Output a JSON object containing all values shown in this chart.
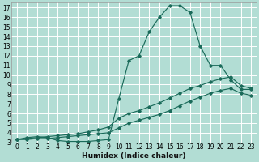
{
  "xlabel": "Humidex (Indice chaleur)",
  "background_color": "#b2ddd4",
  "grid_color": "#ffffff",
  "line_color": "#1a6b5a",
  "xlim": [
    -0.5,
    23.5
  ],
  "ylim": [
    3,
    17.5
  ],
  "xticks": [
    0,
    1,
    2,
    3,
    4,
    5,
    6,
    7,
    8,
    9,
    10,
    11,
    12,
    13,
    14,
    15,
    16,
    17,
    18,
    19,
    20,
    21,
    22,
    23
  ],
  "yticks": [
    3,
    4,
    5,
    6,
    7,
    8,
    9,
    10,
    11,
    12,
    13,
    14,
    15,
    16,
    17
  ],
  "line1_x": [
    0,
    1,
    2,
    3,
    4,
    5,
    6,
    7,
    8,
    9,
    10,
    11,
    12,
    13,
    14,
    15,
    16,
    17,
    18,
    19,
    20,
    21,
    22,
    23
  ],
  "line1_y": [
    3.3,
    3.5,
    3.6,
    3.5,
    3.2,
    3.1,
    3.1,
    3.1,
    3.2,
    3.3,
    7.5,
    11.5,
    12.0,
    14.5,
    16.0,
    17.2,
    17.2,
    16.5,
    13.0,
    11.0,
    11.0,
    9.5,
    8.5,
    8.5
  ],
  "line2_x": [
    0,
    1,
    2,
    3,
    4,
    5,
    6,
    7,
    8,
    9,
    10,
    11,
    12,
    13,
    14,
    15,
    16,
    17,
    18,
    19,
    20,
    21,
    22,
    23
  ],
  "line2_y": [
    3.3,
    3.4,
    3.5,
    3.6,
    3.7,
    3.8,
    3.9,
    4.1,
    4.3,
    4.6,
    5.5,
    6.0,
    6.3,
    6.7,
    7.1,
    7.6,
    8.1,
    8.6,
    8.9,
    9.3,
    9.6,
    9.8,
    8.9,
    8.6
  ],
  "line3_x": [
    0,
    1,
    2,
    3,
    4,
    5,
    6,
    7,
    8,
    9,
    10,
    11,
    12,
    13,
    14,
    15,
    16,
    17,
    18,
    19,
    20,
    21,
    22,
    23
  ],
  "line3_y": [
    3.3,
    3.3,
    3.4,
    3.4,
    3.5,
    3.6,
    3.7,
    3.8,
    3.9,
    4.0,
    4.5,
    5.0,
    5.3,
    5.6,
    5.9,
    6.3,
    6.8,
    7.3,
    7.7,
    8.1,
    8.4,
    8.6,
    8.1,
    7.9
  ],
  "tick_fontsize": 5.5,
  "xlabel_fontsize": 6.5,
  "xlabel_fontweight": "bold"
}
